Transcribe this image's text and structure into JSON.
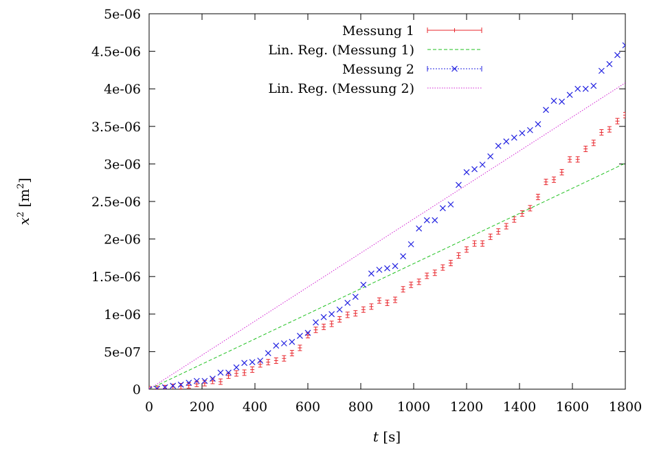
{
  "chart_data": {
    "type": "scatter",
    "xlabel": {
      "var": "t",
      "unit": "[s]"
    },
    "ylabel": {
      "var": "x",
      "exp": "2",
      "unit_open": "[m",
      "unit_exp": "2",
      "unit_close": "]"
    },
    "xlim": [
      0,
      1800
    ],
    "ylim": [
      0,
      5e-06
    ],
    "x_ticks": [
      {
        "v": 0,
        "label": "0"
      },
      {
        "v": 200,
        "label": "200"
      },
      {
        "v": 400,
        "label": "400"
      },
      {
        "v": 600,
        "label": "600"
      },
      {
        "v": 800,
        "label": "800"
      },
      {
        "v": 1000,
        "label": "1000"
      },
      {
        "v": 1200,
        "label": "1200"
      },
      {
        "v": 1400,
        "label": "1400"
      },
      {
        "v": 1600,
        "label": "1600"
      },
      {
        "v": 1800,
        "label": "1800"
      }
    ],
    "y_ticks": [
      {
        "v": 0,
        "label": "0"
      },
      {
        "v": 5e-07,
        "label": "5e-07"
      },
      {
        "v": 1e-06,
        "label": "1e-06"
      },
      {
        "v": 1.5e-06,
        "label": "1.5e-06"
      },
      {
        "v": 2e-06,
        "label": "2e-06"
      },
      {
        "v": 2.5e-06,
        "label": "2.5e-06"
      },
      {
        "v": 3e-06,
        "label": "3e-06"
      },
      {
        "v": 3.5e-06,
        "label": "3.5e-06"
      },
      {
        "v": 4e-06,
        "label": "4e-06"
      },
      {
        "v": 4.5e-06,
        "label": "4.5e-06"
      },
      {
        "v": 5e-06,
        "label": "5e-06"
      }
    ],
    "grid": false,
    "legend_position": "top-right",
    "series": [
      {
        "name": "Messung 1",
        "kind": "points-errorbars",
        "color": "#e8252b",
        "x": [
          0,
          30,
          60,
          90,
          120,
          150,
          180,
          210,
          240,
          270,
          300,
          330,
          360,
          390,
          420,
          450,
          480,
          510,
          540,
          570,
          600,
          630,
          660,
          690,
          720,
          750,
          780,
          810,
          840,
          870,
          900,
          930,
          960,
          990,
          1020,
          1050,
          1080,
          1110,
          1140,
          1170,
          1200,
          1230,
          1260,
          1290,
          1320,
          1350,
          1380,
          1410,
          1440,
          1470,
          1500,
          1530,
          1560,
          1590,
          1620,
          1650,
          1680,
          1710,
          1740,
          1770,
          1800
        ],
        "y": [
          0,
          5e-09,
          1.5e-08,
          3e-08,
          4e-08,
          5e-08,
          7e-08,
          8e-08,
          1.1e-07,
          1e-07,
          1.8e-07,
          2.1e-07,
          2.2e-07,
          2.6e-07,
          3.3e-07,
          3.6e-07,
          3.8e-07,
          4.1e-07,
          4.8e-07,
          5.5e-07,
          7.2e-07,
          7.9e-07,
          8.3e-07,
          8.7e-07,
          9.3e-07,
          9.9e-07,
          1.01e-06,
          1.06e-06,
          1.1e-06,
          1.18e-06,
          1.15e-06,
          1.19e-06,
          1.33e-06,
          1.39e-06,
          1.43e-06,
          1.51e-06,
          1.55e-06,
          1.62e-06,
          1.68e-06,
          1.78e-06,
          1.86e-06,
          1.94e-06,
          1.94e-06,
          2.03e-06,
          2.1e-06,
          2.17e-06,
          2.26e-06,
          2.34e-06,
          2.41e-06,
          2.56e-06,
          2.76e-06,
          2.79e-06,
          2.89e-06,
          3.06e-06,
          3.06e-06,
          3.2e-06,
          3.28e-06,
          3.42e-06,
          3.46e-06,
          3.57e-06,
          3.65e-06
        ]
      },
      {
        "name": "Lin. Reg. (Messung 1)",
        "kind": "line",
        "style": "dashed",
        "color": "#1fc11f",
        "x": [
          0,
          1800
        ],
        "y": [
          0,
          3.01e-06
        ]
      },
      {
        "name": "Messung 2",
        "kind": "points-x",
        "color": "#1f1fe0",
        "x": [
          0,
          30,
          60,
          90,
          120,
          150,
          180,
          210,
          240,
          270,
          300,
          330,
          360,
          390,
          420,
          450,
          480,
          510,
          540,
          570,
          600,
          630,
          660,
          690,
          720,
          750,
          780,
          810,
          840,
          870,
          900,
          930,
          960,
          990,
          1020,
          1050,
          1080,
          1110,
          1140,
          1170,
          1200,
          1230,
          1260,
          1290,
          1320,
          1350,
          1380,
          1410,
          1440,
          1470,
          1500,
          1530,
          1560,
          1590,
          1620,
          1650,
          1680,
          1710,
          1740,
          1770,
          1800
        ],
        "y": [
          0,
          5e-09,
          2.5e-08,
          4.5e-08,
          6e-08,
          8.5e-08,
          1.1e-07,
          1.1e-07,
          1.4e-07,
          2.2e-07,
          2.2e-07,
          2.9e-07,
          3.5e-07,
          3.6e-07,
          3.8e-07,
          4.8e-07,
          5.8e-07,
          6.1e-07,
          6.3e-07,
          7.1e-07,
          7.5e-07,
          8.9e-07,
          9.6e-07,
          1e-06,
          1.06e-06,
          1.15e-06,
          1.23e-06,
          1.39e-06,
          1.54e-06,
          1.59e-06,
          1.61e-06,
          1.64e-06,
          1.77e-06,
          1.93e-06,
          2.14e-06,
          2.25e-06,
          2.25e-06,
          2.41e-06,
          2.46e-06,
          2.72e-06,
          2.89e-06,
          2.93e-06,
          2.99e-06,
          3.1e-06,
          3.24e-06,
          3.3e-06,
          3.35e-06,
          3.41e-06,
          3.45e-06,
          3.53e-06,
          3.72e-06,
          3.84e-06,
          3.83e-06,
          3.92e-06,
          4e-06,
          4e-06,
          4.04e-06,
          4.24e-06,
          4.33e-06,
          4.45e-06,
          4.58e-06
        ]
      },
      {
        "name": "Lin. Reg. (Messung 2)",
        "kind": "line",
        "style": "dotted",
        "color": "#d21fd2",
        "x": [
          0,
          1800
        ],
        "y": [
          0,
          4.08e-06
        ]
      }
    ]
  }
}
